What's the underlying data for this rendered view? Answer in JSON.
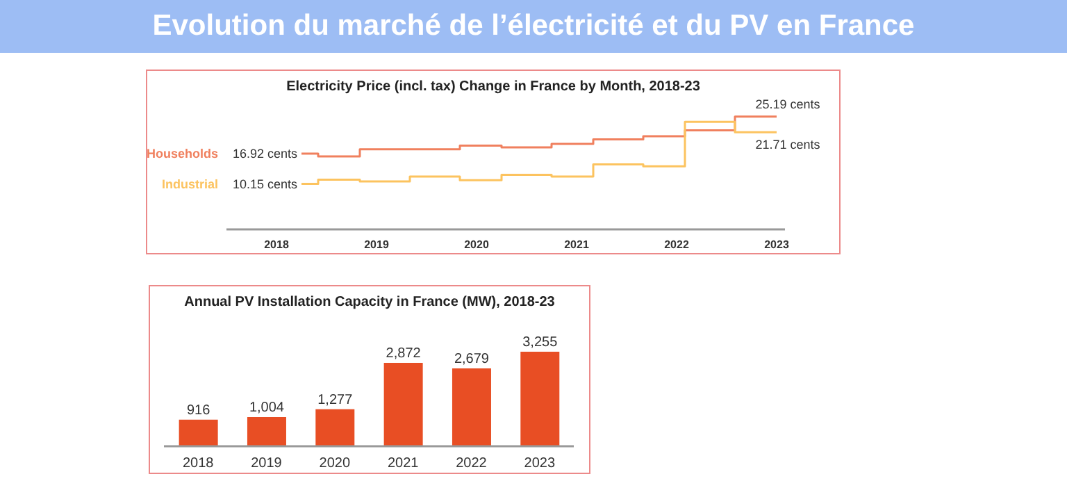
{
  "chart_data": [
    {
      "type": "other",
      "title": "Evolution du marché de l’électricité et du PV en France"
    },
    {
      "type": "step",
      "title": "Electricity Price (incl. tax) Change in France by Month, 2018-23",
      "xlim": [
        "2018-01",
        "2023-08"
      ],
      "xticks": [
        {
          "value": "2018-07",
          "label": "2018"
        },
        {
          "value": "2019-07",
          "label": "2019"
        },
        {
          "value": "2020-07",
          "label": "2020"
        },
        {
          "value": "2021-07",
          "label": "2021"
        },
        {
          "value": "2022-07",
          "label": "2022"
        },
        {
          "value": "2023-07",
          "label": "2023"
        }
      ],
      "tick_labels": "x",
      "series": [
        {
          "name": "Households",
          "color": "#f0805e",
          "x": [
            "2018-10",
            "2018-12",
            "2019-05",
            "2020-05",
            "2020-10",
            "2021-04",
            "2021-09",
            "2022-03",
            "2022-08",
            "2023-02",
            "2023-07"
          ],
          "values": [
            16.92,
            16.3,
            17.9,
            18.7,
            18.3,
            19.1,
            20.1,
            20.8,
            22.1,
            25.19,
            25.19
          ],
          "value_labels": [
            "16.92 cents",
            null,
            null,
            null,
            null,
            null,
            null,
            null,
            null,
            null,
            "25.19 cents"
          ]
        },
        {
          "name": "Industrial",
          "color": "#fcc35f",
          "x": [
            "2018-10",
            "2018-12",
            "2019-05",
            "2019-11",
            "2020-05",
            "2020-10",
            "2021-04",
            "2021-09",
            "2022-03",
            "2022-08",
            "2022-11",
            "2023-02",
            "2023-07"
          ],
          "values": [
            10.15,
            11.1,
            10.7,
            11.8,
            11.0,
            12.2,
            11.8,
            14.5,
            14.1,
            24.0,
            24.0,
            21.71,
            21.71
          ],
          "value_labels": [
            "10.15 cents",
            null,
            null,
            null,
            null,
            null,
            null,
            null,
            null,
            null,
            null,
            null,
            "21.71 cents"
          ]
        }
      ]
    },
    {
      "type": "bar",
      "title": "Annual PV Installation Capacity in France (MW), 2018-23",
      "categories": [
        "2018",
        "2019",
        "2020",
        "2021",
        "2022",
        "2023"
      ],
      "values": [
        916,
        1004,
        1277,
        2872,
        2679,
        3255
      ],
      "value_labels": [
        "916",
        "1,004",
        "1,277",
        "2,872",
        "2,679",
        "3,255"
      ],
      "color": "#e84e24",
      "tick_labels": "x"
    }
  ]
}
